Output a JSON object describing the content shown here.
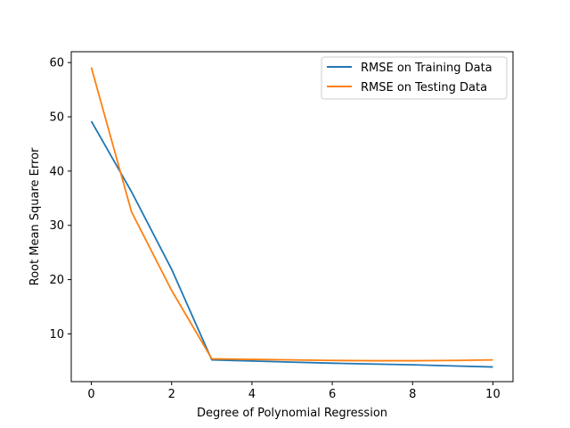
{
  "chart_data": {
    "type": "line",
    "title": "",
    "xlabel": "Degree of Polynomial Regression",
    "ylabel": "Root Mean Square Error",
    "xlim": [
      -0.5,
      10.5
    ],
    "ylim": [
      1.2,
      62
    ],
    "xticks": [
      0,
      2,
      4,
      6,
      8,
      10
    ],
    "yticks": [
      10,
      20,
      30,
      40,
      50,
      60
    ],
    "grid": false,
    "legend_position": "top-right",
    "series": [
      {
        "name": "RMSE on Training Data",
        "color": "#1f77b4",
        "x": [
          0,
          1,
          2,
          3,
          4,
          5,
          6,
          7,
          8,
          9,
          10
        ],
        "y": [
          49.2,
          36.2,
          21.9,
          5.2,
          5.0,
          4.8,
          4.6,
          4.45,
          4.3,
          4.1,
          3.9
        ]
      },
      {
        "name": "RMSE on Testing Data",
        "color": "#ff7f0e",
        "x": [
          0,
          1,
          2,
          3,
          4,
          5,
          6,
          7,
          8,
          9,
          10
        ],
        "y": [
          59.1,
          32.5,
          18.0,
          5.4,
          5.3,
          5.2,
          5.1,
          5.05,
          5.05,
          5.1,
          5.2
        ]
      }
    ]
  }
}
